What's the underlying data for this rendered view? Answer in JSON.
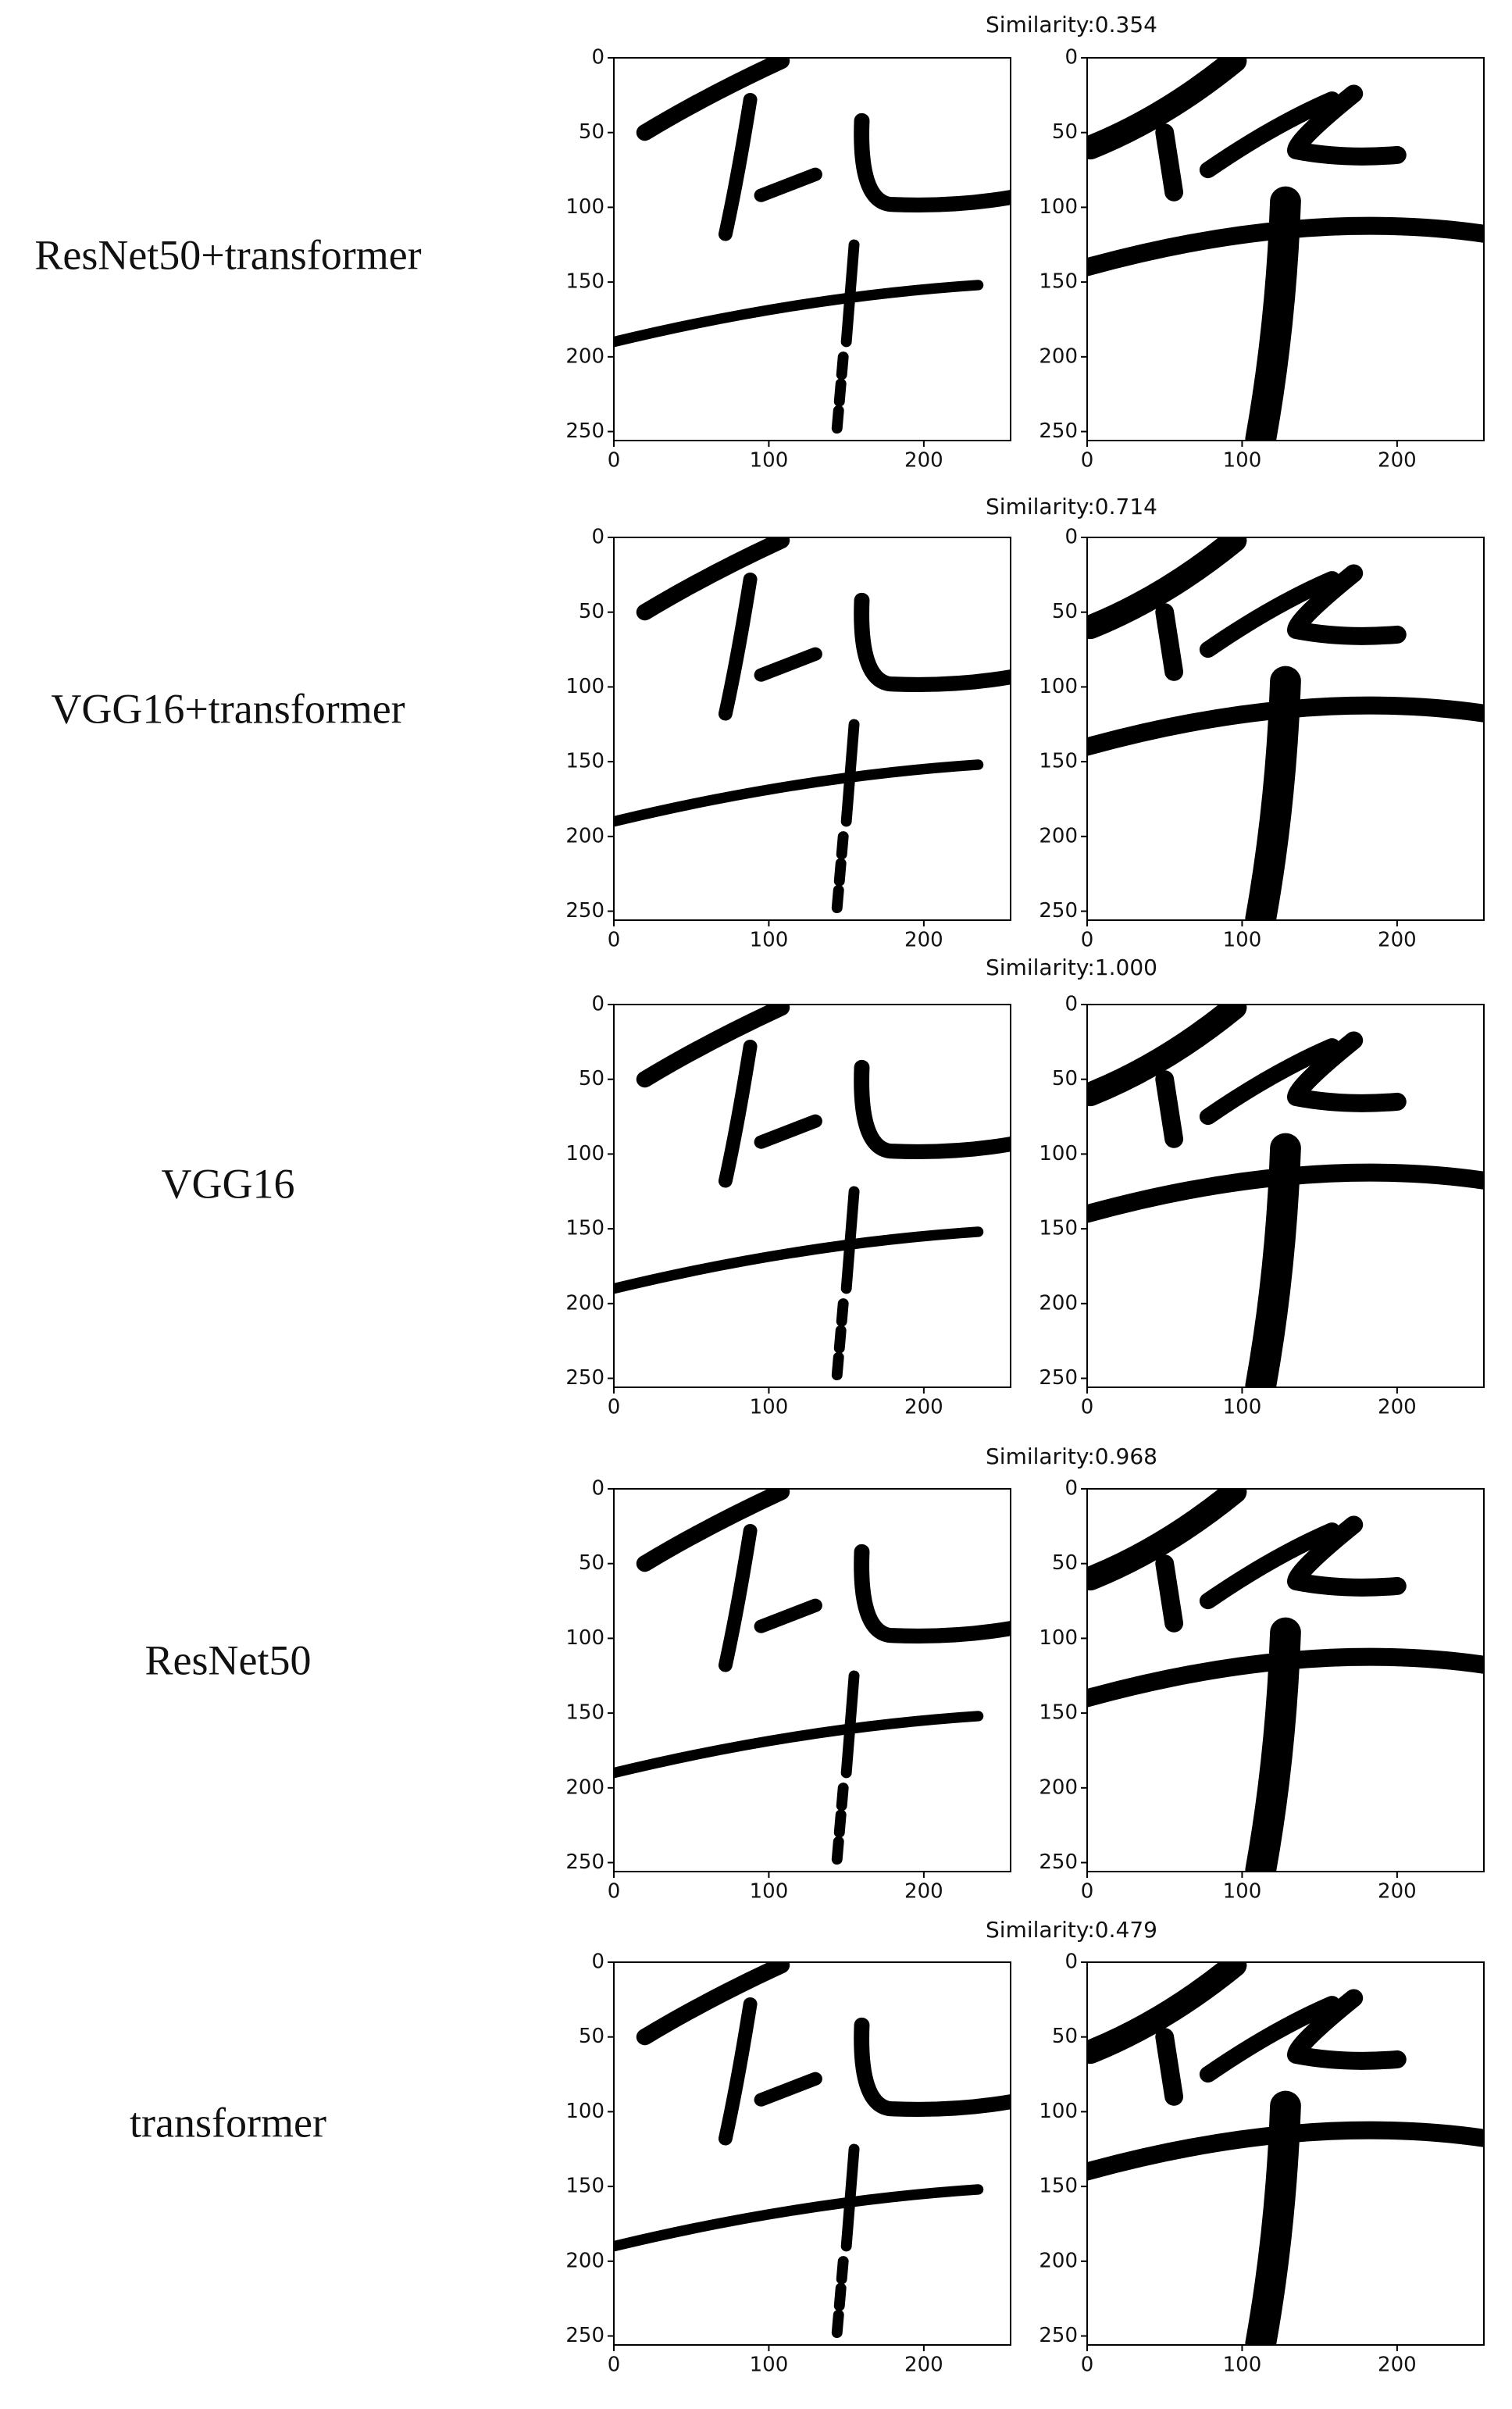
{
  "axes": {
    "xlim": [
      0,
      256
    ],
    "ylim": [
      0,
      256
    ],
    "xticks": [
      0,
      100,
      200
    ],
    "yticks": [
      0,
      50,
      100,
      150,
      200,
      250
    ]
  },
  "rows": [
    {
      "label": "ResNet50+transformer",
      "similarity": "Similarity:0.354"
    },
    {
      "label": "VGG16+transformer",
      "similarity": "Similarity:0.714"
    },
    {
      "label": "VGG16",
      "similarity": "Similarity:1.000"
    },
    {
      "label": "ResNet50",
      "similarity": "Similarity:0.968"
    },
    {
      "label": "transformer",
      "similarity": "Similarity:0.479"
    }
  ]
}
